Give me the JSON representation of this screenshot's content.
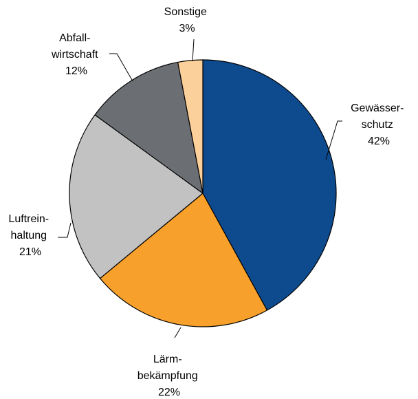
{
  "chart_data": {
    "type": "pie",
    "title": "",
    "start_angle_deg": 0,
    "direction": "clockwise",
    "legend": "none",
    "slices": [
      {
        "label_lines": [
          "Gewässer-",
          "schutz"
        ],
        "value": 42,
        "value_label": "42%",
        "color": "#0e4a8e"
      },
      {
        "label_lines": [
          "Lärm-",
          "bekämpfung"
        ],
        "value": 22,
        "value_label": "22%",
        "color": "#f7a12c"
      },
      {
        "label_lines": [
          "Luftrein-",
          "haltung"
        ],
        "value": 21,
        "value_label": "21%",
        "color": "#c2c2c2"
      },
      {
        "label_lines": [
          "Abfall-",
          "wirtschaft"
        ],
        "value": 12,
        "value_label": "12%",
        "color": "#6b6f73"
      },
      {
        "label_lines": [
          "Sonstige"
        ],
        "value": 3,
        "value_label": "3%",
        "color": "#fcd09a"
      }
    ]
  }
}
